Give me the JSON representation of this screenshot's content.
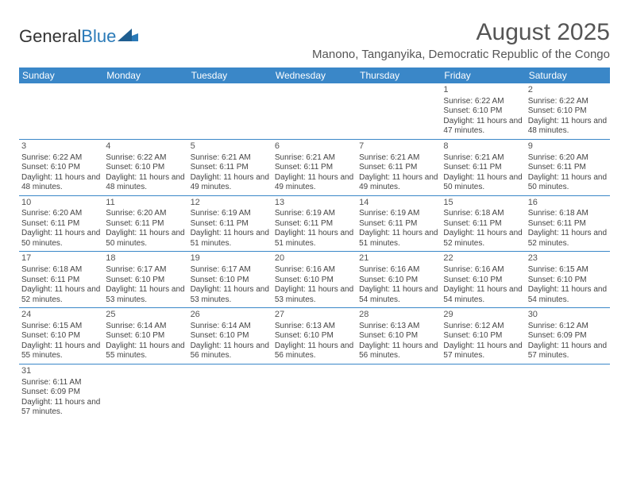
{
  "logo": {
    "textA": "General",
    "textB": "Blue"
  },
  "title": "August 2025",
  "location": "Manono, Tanganyika, Democratic Republic of the Congo",
  "colors": {
    "header_bg": "#3a87c8",
    "header_text": "#ffffff",
    "border": "#3a87c8",
    "text": "#444444",
    "title_text": "#555555"
  },
  "dayNames": [
    "Sunday",
    "Monday",
    "Tuesday",
    "Wednesday",
    "Thursday",
    "Friday",
    "Saturday"
  ],
  "weeks": [
    [
      null,
      null,
      null,
      null,
      null,
      {
        "n": "1",
        "sr": "6:22 AM",
        "ss": "6:10 PM",
        "dl": "11 hours and 47 minutes."
      },
      {
        "n": "2",
        "sr": "6:22 AM",
        "ss": "6:10 PM",
        "dl": "11 hours and 48 minutes."
      }
    ],
    [
      {
        "n": "3",
        "sr": "6:22 AM",
        "ss": "6:10 PM",
        "dl": "11 hours and 48 minutes."
      },
      {
        "n": "4",
        "sr": "6:22 AM",
        "ss": "6:10 PM",
        "dl": "11 hours and 48 minutes."
      },
      {
        "n": "5",
        "sr": "6:21 AM",
        "ss": "6:11 PM",
        "dl": "11 hours and 49 minutes."
      },
      {
        "n": "6",
        "sr": "6:21 AM",
        "ss": "6:11 PM",
        "dl": "11 hours and 49 minutes."
      },
      {
        "n": "7",
        "sr": "6:21 AM",
        "ss": "6:11 PM",
        "dl": "11 hours and 49 minutes."
      },
      {
        "n": "8",
        "sr": "6:21 AM",
        "ss": "6:11 PM",
        "dl": "11 hours and 50 minutes."
      },
      {
        "n": "9",
        "sr": "6:20 AM",
        "ss": "6:11 PM",
        "dl": "11 hours and 50 minutes."
      }
    ],
    [
      {
        "n": "10",
        "sr": "6:20 AM",
        "ss": "6:11 PM",
        "dl": "11 hours and 50 minutes."
      },
      {
        "n": "11",
        "sr": "6:20 AM",
        "ss": "6:11 PM",
        "dl": "11 hours and 50 minutes."
      },
      {
        "n": "12",
        "sr": "6:19 AM",
        "ss": "6:11 PM",
        "dl": "11 hours and 51 minutes."
      },
      {
        "n": "13",
        "sr": "6:19 AM",
        "ss": "6:11 PM",
        "dl": "11 hours and 51 minutes."
      },
      {
        "n": "14",
        "sr": "6:19 AM",
        "ss": "6:11 PM",
        "dl": "11 hours and 51 minutes."
      },
      {
        "n": "15",
        "sr": "6:18 AM",
        "ss": "6:11 PM",
        "dl": "11 hours and 52 minutes."
      },
      {
        "n": "16",
        "sr": "6:18 AM",
        "ss": "6:11 PM",
        "dl": "11 hours and 52 minutes."
      }
    ],
    [
      {
        "n": "17",
        "sr": "6:18 AM",
        "ss": "6:11 PM",
        "dl": "11 hours and 52 minutes."
      },
      {
        "n": "18",
        "sr": "6:17 AM",
        "ss": "6:10 PM",
        "dl": "11 hours and 53 minutes."
      },
      {
        "n": "19",
        "sr": "6:17 AM",
        "ss": "6:10 PM",
        "dl": "11 hours and 53 minutes."
      },
      {
        "n": "20",
        "sr": "6:16 AM",
        "ss": "6:10 PM",
        "dl": "11 hours and 53 minutes."
      },
      {
        "n": "21",
        "sr": "6:16 AM",
        "ss": "6:10 PM",
        "dl": "11 hours and 54 minutes."
      },
      {
        "n": "22",
        "sr": "6:16 AM",
        "ss": "6:10 PM",
        "dl": "11 hours and 54 minutes."
      },
      {
        "n": "23",
        "sr": "6:15 AM",
        "ss": "6:10 PM",
        "dl": "11 hours and 54 minutes."
      }
    ],
    [
      {
        "n": "24",
        "sr": "6:15 AM",
        "ss": "6:10 PM",
        "dl": "11 hours and 55 minutes."
      },
      {
        "n": "25",
        "sr": "6:14 AM",
        "ss": "6:10 PM",
        "dl": "11 hours and 55 minutes."
      },
      {
        "n": "26",
        "sr": "6:14 AM",
        "ss": "6:10 PM",
        "dl": "11 hours and 56 minutes."
      },
      {
        "n": "27",
        "sr": "6:13 AM",
        "ss": "6:10 PM",
        "dl": "11 hours and 56 minutes."
      },
      {
        "n": "28",
        "sr": "6:13 AM",
        "ss": "6:10 PM",
        "dl": "11 hours and 56 minutes."
      },
      {
        "n": "29",
        "sr": "6:12 AM",
        "ss": "6:10 PM",
        "dl": "11 hours and 57 minutes."
      },
      {
        "n": "30",
        "sr": "6:12 AM",
        "ss": "6:09 PM",
        "dl": "11 hours and 57 minutes."
      }
    ],
    [
      {
        "n": "31",
        "sr": "6:11 AM",
        "ss": "6:09 PM",
        "dl": "11 hours and 57 minutes."
      },
      null,
      null,
      null,
      null,
      null,
      null
    ]
  ],
  "labels": {
    "sunrise": "Sunrise:",
    "sunset": "Sunset:",
    "daylight": "Daylight:"
  }
}
